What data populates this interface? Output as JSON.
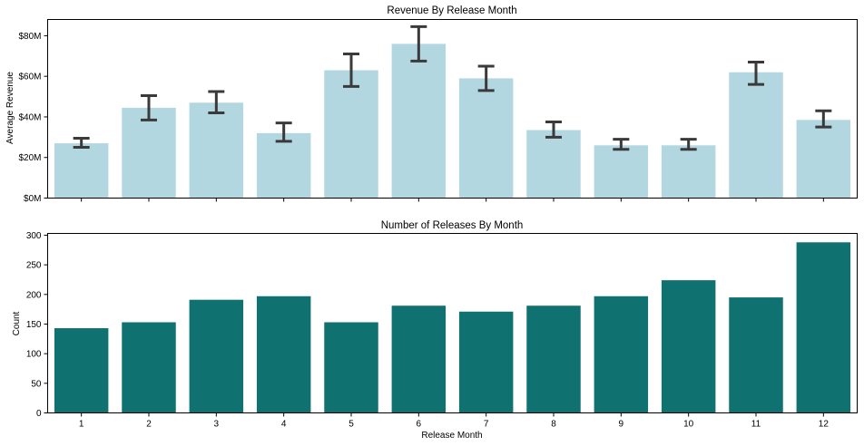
{
  "colors": {
    "revenue_bar": "#b3d7e1",
    "count_bar": "#107270",
    "error_bar": "#3a3a3a",
    "axis": "#000000"
  },
  "chart_data": [
    {
      "type": "bar",
      "title": "Revenue By Release Month",
      "xlabel": "",
      "ylabel": "Average Revenue",
      "categories": [
        "1",
        "2",
        "3",
        "4",
        "5",
        "6",
        "7",
        "8",
        "9",
        "10",
        "11",
        "12"
      ],
      "values": [
        27,
        44.5,
        47,
        32,
        63,
        76,
        59,
        33.5,
        26,
        26,
        62,
        38.5
      ],
      "error_low": [
        25,
        38.5,
        42,
        28,
        55,
        67.5,
        53,
        30,
        24,
        24,
        56,
        35
      ],
      "error_high": [
        29.5,
        50.5,
        52.5,
        37,
        71,
        84.5,
        65,
        37.5,
        29,
        29,
        67,
        43
      ],
      "ylim": [
        0,
        88
      ],
      "yticks": [
        0,
        20,
        40,
        60,
        80
      ],
      "ytick_labels": [
        "$0M",
        "$20M",
        "$40M",
        "$60M",
        "$80M"
      ],
      "show_xtick_labels": false,
      "grid": false,
      "legend": "none"
    },
    {
      "type": "bar",
      "title": "Number of Releases By Month",
      "xlabel": "Release Month",
      "ylabel": "Count",
      "categories": [
        "1",
        "2",
        "3",
        "4",
        "5",
        "6",
        "7",
        "8",
        "9",
        "10",
        "11",
        "12"
      ],
      "values": [
        143,
        153,
        191,
        197,
        153,
        181,
        171,
        181,
        197,
        224,
        195,
        288
      ],
      "ylim": [
        0,
        303
      ],
      "yticks": [
        0,
        50,
        100,
        150,
        200,
        250,
        300
      ],
      "ytick_labels": [
        "0",
        "50",
        "100",
        "150",
        "200",
        "250",
        "300"
      ],
      "show_xtick_labels": true,
      "grid": false,
      "legend": "none"
    }
  ]
}
